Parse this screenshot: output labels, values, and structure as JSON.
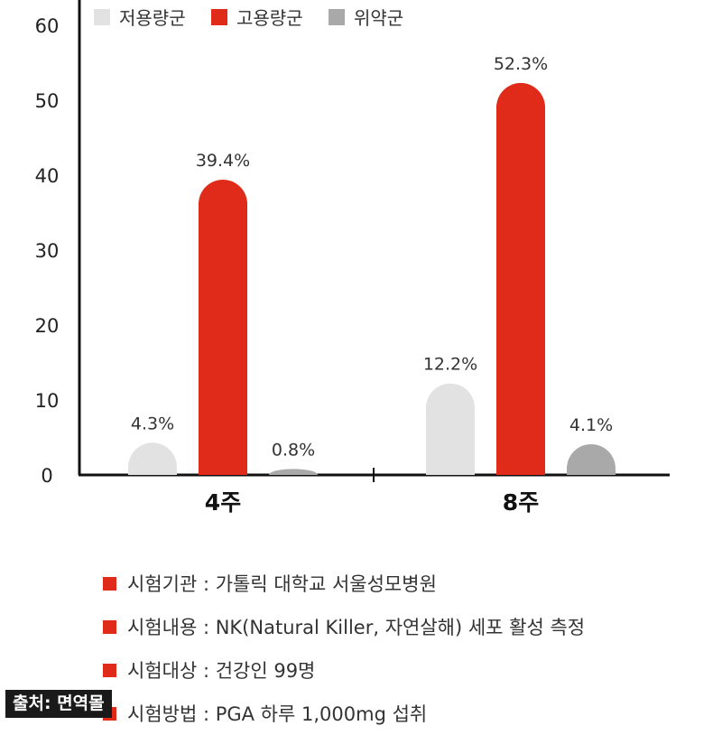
{
  "chart_data": {
    "type": "bar",
    "categories": [
      "4주",
      "8주"
    ],
    "series": [
      {
        "name": "저용량군",
        "color": "#e2e2e2",
        "values": [
          4.3,
          12.2
        ],
        "labels": [
          "4.3%",
          "12.2%"
        ]
      },
      {
        "name": "고용량군",
        "color": "#e02a1a",
        "values": [
          39.4,
          52.3
        ],
        "labels": [
          "39.4%",
          "52.3%"
        ]
      },
      {
        "name": "위약군",
        "color": "#a9a9a9",
        "values": [
          0.8,
          4.1
        ],
        "labels": [
          "0.8%",
          "4.1%"
        ]
      }
    ],
    "yticks": [
      "0",
      "10",
      "20",
      "30",
      "40",
      "50",
      "60"
    ],
    "ylim": [
      0,
      60
    ],
    "legend_position": "top",
    "grid": false
  },
  "notes": [
    "시험기관 : 가톨릭 대학교 서울성모병원",
    "시험내용 : NK(Natural Killer, 자연살해) 세포 활성 측정",
    "시험대상 : 건강인 99명",
    "시험방법 : PGA 하루 1,000mg 섭취"
  ],
  "source_label": "출처: 면역몰",
  "colors": {
    "accent": "#e02a1a",
    "low": "#e2e2e2",
    "placebo": "#a9a9a9"
  }
}
